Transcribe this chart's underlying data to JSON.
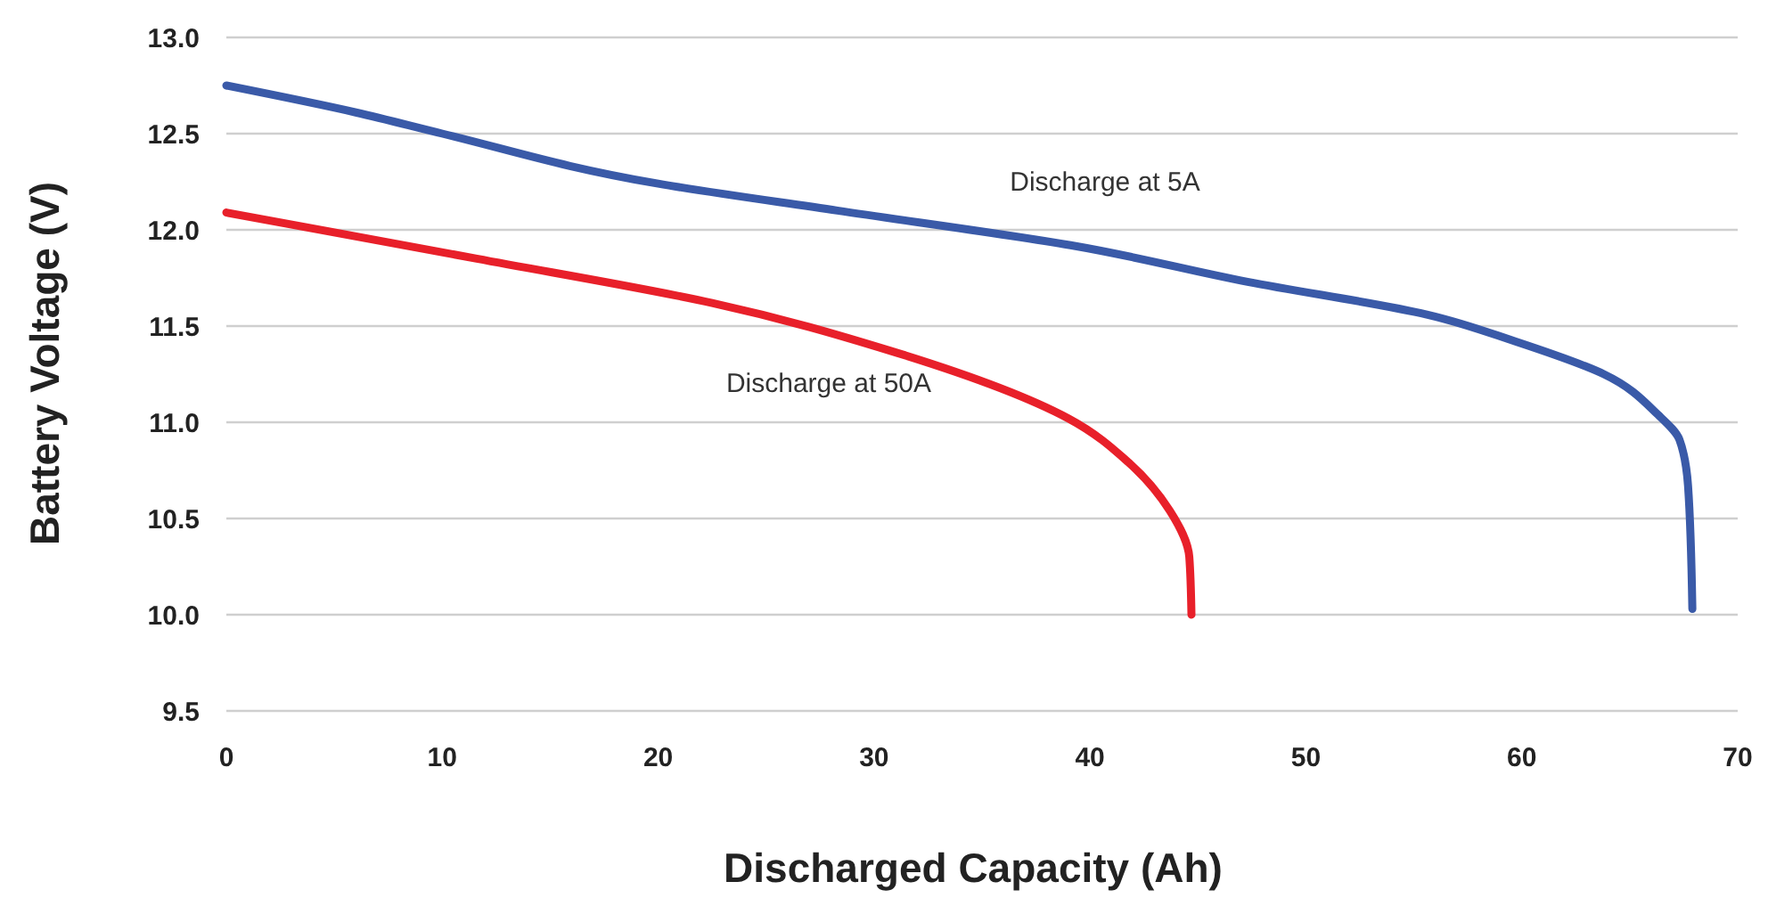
{
  "chart_data": {
    "type": "line",
    "xlabel": "Discharged Capacity (Ah)",
    "ylabel": "Battery Voltage (V)",
    "xlim": [
      0,
      70
    ],
    "ylim": [
      9.5,
      13.0
    ],
    "xticks": [
      0,
      10,
      20,
      30,
      40,
      50,
      60,
      70
    ],
    "yticks": [
      {
        "value": 9.5,
        "label": "9.5"
      },
      {
        "value": 10,
        "label": "10.0"
      },
      {
        "value": 10.5,
        "label": "10.5"
      },
      {
        "value": 11,
        "label": "11.0"
      },
      {
        "value": 11.5,
        "label": "11.5"
      },
      {
        "value": 12,
        "label": "12.0"
      },
      {
        "value": 12.5,
        "label": "12.5"
      },
      {
        "value": 13,
        "label": "13.0"
      }
    ],
    "grid": "y",
    "marker": "none",
    "line_style": "solid",
    "series": [
      {
        "name": "Discharge at 5A",
        "color": "#3a5aa8",
        "x": [
          0,
          6,
          10,
          20,
          28.3,
          39.1,
          47.3,
          55.6,
          59.7,
          63.8,
          66.3,
          67.3,
          67.7,
          67.9
        ],
        "values": [
          12.75,
          12.61,
          12.5,
          12.24,
          12.1,
          11.92,
          11.73,
          11.56,
          11.42,
          11.25,
          11.04,
          10.91,
          10.67,
          10.03
        ]
      },
      {
        "name": "Discharge at 50A",
        "color": "#e8202a",
        "x": [
          0,
          11.6,
          22.5,
          30.8,
          39,
          41.8,
          43.7,
          44.6,
          44.7
        ],
        "values": [
          12.09,
          11.85,
          11.62,
          11.37,
          11.02,
          10.79,
          10.54,
          10.3,
          10.0
        ]
      }
    ]
  }
}
